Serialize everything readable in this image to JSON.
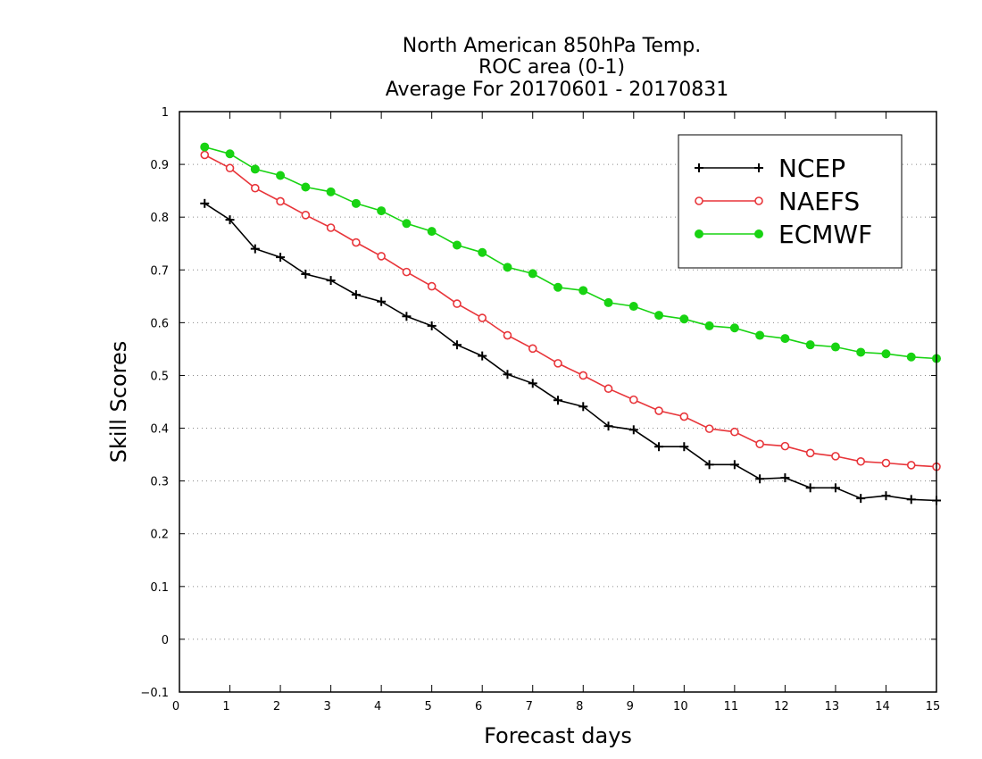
{
  "chart_data": {
    "type": "line",
    "title_lines": [
      "North American 850hPa Temp.",
      "ROC area (0-1)",
      "Average For 20170601 - 20170831"
    ],
    "xlabel": "Forecast days",
    "ylabel": "Skill Scores",
    "xlim": [
      0,
      15
    ],
    "ylim": [
      -0.1,
      1
    ],
    "x_ticks": [
      "0",
      "1",
      "2",
      "3",
      "4",
      "5",
      "6",
      "7",
      "8",
      "9",
      "10",
      "11",
      "12",
      "13",
      "14",
      "15"
    ],
    "y_ticks": [
      "−0.1",
      "0",
      "0.1",
      "0.2",
      "0.3",
      "0.4",
      "0.5",
      "0.6",
      "0.7",
      "0.8",
      "0.9",
      "1"
    ],
    "grid": "horizontal-dotted",
    "legend_position": "top-right",
    "x": [
      0.5,
      1,
      1.5,
      2,
      2.5,
      3,
      3.5,
      4,
      4.5,
      5,
      5.5,
      6,
      6.5,
      7,
      7.5,
      8,
      8.5,
      9,
      9.5,
      10,
      10.5,
      11,
      11.5,
      12,
      12.5,
      13,
      13.5,
      14,
      14.5,
      15
    ],
    "series": [
      {
        "name": "NCEP",
        "color": "#000000",
        "marker": "plus",
        "values": [
          0.826,
          0.795,
          0.74,
          0.724,
          0.692,
          0.68,
          0.653,
          0.64,
          0.612,
          0.594,
          0.558,
          0.537,
          0.502,
          0.485,
          0.453,
          0.441,
          0.404,
          0.397,
          0.365,
          0.365,
          0.331,
          0.331,
          0.304,
          0.306,
          0.287,
          0.287,
          0.267,
          0.272,
          0.265,
          0.263
        ]
      },
      {
        "name": "NAEFS",
        "color": "#e8353a",
        "marker": "open-circle",
        "values": [
          0.918,
          0.893,
          0.855,
          0.83,
          0.804,
          0.78,
          0.752,
          0.726,
          0.696,
          0.669,
          0.636,
          0.609,
          0.576,
          0.551,
          0.523,
          0.5,
          0.475,
          0.454,
          0.433,
          0.422,
          0.399,
          0.393,
          0.37,
          0.366,
          0.353,
          0.347,
          0.337,
          0.334,
          0.33,
          0.327
        ]
      },
      {
        "name": "ECMWF",
        "color": "#18d312",
        "marker": "filled-circle",
        "values": [
          0.933,
          0.92,
          0.891,
          0.879,
          0.857,
          0.848,
          0.826,
          0.812,
          0.788,
          0.773,
          0.747,
          0.733,
          0.705,
          0.693,
          0.667,
          0.661,
          0.638,
          0.631,
          0.614,
          0.607,
          0.594,
          0.59,
          0.576,
          0.57,
          0.558,
          0.554,
          0.544,
          0.541,
          0.535,
          0.532
        ]
      }
    ]
  }
}
